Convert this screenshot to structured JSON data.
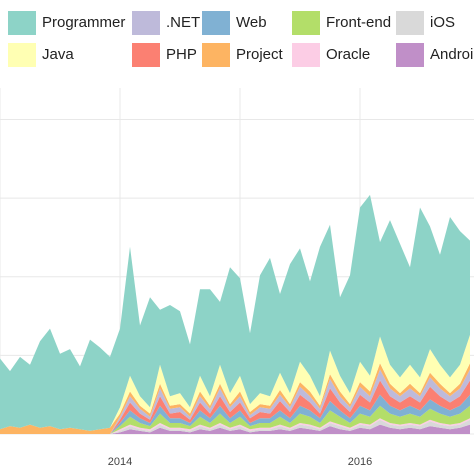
{
  "chart_data": {
    "type": "area",
    "stacked": true,
    "title": "",
    "xlabel": "",
    "ylabel": "",
    "legend_position": "top",
    "grid": true,
    "x_tick_labels": [
      "2014",
      "2016"
    ],
    "x": [
      2013.0,
      2013.083,
      2013.167,
      2013.25,
      2013.333,
      2013.417,
      2013.5,
      2013.583,
      2013.667,
      2013.75,
      2013.833,
      2013.917,
      2014.0,
      2014.083,
      2014.167,
      2014.25,
      2014.333,
      2014.417,
      2014.5,
      2014.583,
      2014.667,
      2014.75,
      2014.833,
      2014.917,
      2015.0,
      2015.083,
      2015.167,
      2015.25,
      2015.333,
      2015.417,
      2015.5,
      2015.583,
      2015.667,
      2015.75,
      2015.833,
      2015.917,
      2016.0,
      2016.083,
      2016.167,
      2016.25,
      2016.333,
      2016.417,
      2016.5,
      2016.583,
      2016.667,
      2016.75,
      2016.833,
      2016.917
    ],
    "series": [
      {
        "name": "Android",
        "color": "#c08fc8",
        "values": [
          0,
          0,
          0,
          0,
          0,
          0,
          0,
          0,
          0,
          0,
          0,
          0,
          1,
          3,
          2,
          1,
          4,
          2,
          2,
          1,
          3,
          2,
          4,
          2,
          3,
          1,
          2,
          2,
          3,
          2,
          4,
          3,
          2,
          5,
          3,
          2,
          4,
          3,
          6,
          4,
          3,
          4,
          3,
          5,
          4,
          3,
          4,
          6
        ]
      },
      {
        "name": "iOS",
        "color": "#d9d9d9",
        "values": [
          0,
          0,
          0,
          0,
          0,
          0,
          0,
          0,
          0,
          0,
          0,
          0,
          1,
          2,
          1,
          1,
          2,
          1,
          1,
          1,
          2,
          1,
          2,
          1,
          2,
          1,
          1,
          1,
          2,
          1,
          2,
          2,
          1,
          2,
          2,
          1,
          2,
          2,
          3,
          2,
          2,
          2,
          2,
          3,
          2,
          2,
          2,
          3
        ]
      },
      {
        "name": "Oracle",
        "color": "#fccde5",
        "values": [
          0,
          0,
          0,
          0,
          0,
          0,
          0,
          0,
          0,
          0,
          0,
          0,
          1,
          1,
          1,
          1,
          1,
          1,
          1,
          1,
          1,
          1,
          1,
          1,
          1,
          1,
          1,
          1,
          1,
          1,
          1,
          1,
          1,
          1,
          1,
          1,
          1,
          1,
          1,
          1,
          1,
          1,
          1,
          1,
          1,
          1,
          1,
          1
        ]
      },
      {
        "name": "Front-end",
        "color": "#b3de69",
        "values": [
          0,
          0,
          0,
          0,
          0,
          0,
          0,
          0,
          0,
          0,
          0,
          0,
          2,
          5,
          3,
          2,
          6,
          3,
          3,
          2,
          5,
          3,
          6,
          3,
          5,
          2,
          3,
          3,
          5,
          3,
          6,
          5,
          3,
          7,
          5,
          3,
          6,
          5,
          8,
          6,
          5,
          6,
          5,
          7,
          6,
          5,
          6,
          8
        ]
      },
      {
        "name": "Web",
        "color": "#80b1d3",
        "values": [
          0,
          0,
          0,
          0,
          0,
          0,
          0,
          0,
          0,
          0,
          0,
          0,
          2,
          4,
          3,
          2,
          5,
          3,
          3,
          2,
          4,
          3,
          5,
          3,
          4,
          2,
          3,
          3,
          4,
          3,
          5,
          4,
          3,
          6,
          4,
          3,
          5,
          4,
          7,
          5,
          4,
          5,
          4,
          6,
          5,
          4,
          5,
          7
        ]
      },
      {
        "name": "PHP",
        "color": "#fb8072",
        "values": [
          0,
          0,
          0,
          0,
          0,
          0,
          0,
          0,
          0,
          0,
          0,
          0,
          2,
          5,
          3,
          2,
          6,
          3,
          4,
          2,
          5,
          3,
          6,
          4,
          5,
          3,
          4,
          3,
          6,
          4,
          7,
          5,
          3,
          8,
          5,
          4,
          7,
          5,
          9,
          6,
          5,
          6,
          5,
          8,
          6,
          5,
          6,
          9
        ]
      },
      {
        "name": ".NET",
        "color": "#bebada",
        "values": [
          0,
          0,
          0,
          0,
          0,
          0,
          0,
          0,
          0,
          0,
          0,
          0,
          2,
          4,
          3,
          2,
          5,
          3,
          3,
          2,
          4,
          3,
          5,
          3,
          4,
          2,
          3,
          3,
          4,
          3,
          5,
          4,
          3,
          6,
          4,
          3,
          5,
          4,
          7,
          5,
          4,
          5,
          4,
          6,
          5,
          4,
          5,
          7
        ]
      },
      {
        "name": "Project",
        "color": "#fdb462",
        "values": [
          3,
          5,
          4,
          6,
          4,
          5,
          3,
          4,
          3,
          2,
          3,
          4,
          2,
          3,
          2,
          2,
          3,
          2,
          2,
          2,
          3,
          2,
          3,
          2,
          3,
          2,
          2,
          2,
          3,
          2,
          3,
          3,
          2,
          3,
          3,
          2,
          3,
          3,
          4,
          3,
          2,
          3,
          2,
          3,
          3,
          2,
          3,
          4
        ]
      },
      {
        "name": "Java",
        "color": "#ffffb3",
        "values": [
          0,
          0,
          0,
          0,
          0,
          0,
          0,
          0,
          0,
          0,
          0,
          0,
          4,
          10,
          6,
          4,
          12,
          6,
          7,
          4,
          10,
          6,
          12,
          7,
          10,
          5,
          7,
          6,
          11,
          7,
          13,
          10,
          6,
          15,
          10,
          7,
          13,
          10,
          17,
          12,
          10,
          12,
          10,
          15,
          12,
          10,
          12,
          18
        ]
      },
      {
        "name": "Programmer",
        "color": "#8dd3c7",
        "values": [
          45,
          35,
          45,
          38,
          55,
          62,
          48,
          50,
          40,
          58,
          52,
          45,
          50,
          82,
          45,
          70,
          35,
          58,
          52,
          40,
          55,
          68,
          40,
          80,
          62,
          45,
          75,
          88,
          50,
          82,
          72,
          60,
          95,
          80,
          50,
          75,
          98,
          115,
          60,
          92,
          85,
          62,
          108,
          78,
          70,
          102,
          85,
          60
        ]
      }
    ],
    "ylim": [
      0,
      220
    ]
  }
}
